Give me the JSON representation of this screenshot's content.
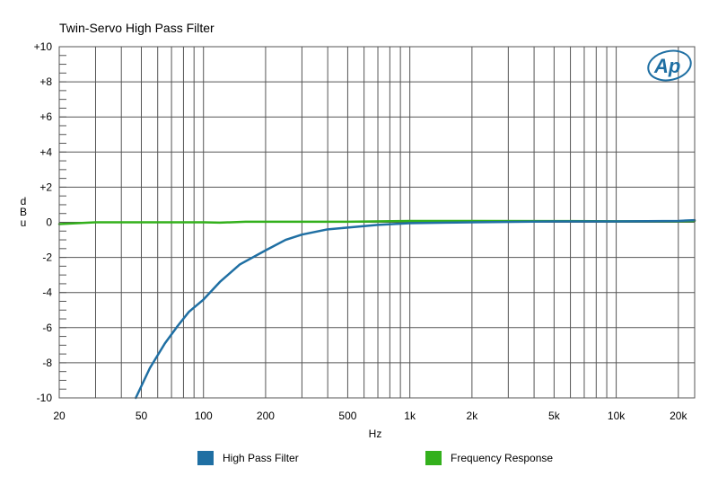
{
  "chart_data": {
    "type": "line",
    "title": "Twin-Servo High Pass Filter",
    "xlabel": "Hz",
    "ylabel": "dBu",
    "xscale": "log",
    "xlim": [
      20,
      24000
    ],
    "ylim": [
      -10,
      10
    ],
    "x_ticks": [
      {
        "value": 20,
        "label": "20"
      },
      {
        "value": 50,
        "label": "50"
      },
      {
        "value": 100,
        "label": "100"
      },
      {
        "value": 200,
        "label": "200"
      },
      {
        "value": 500,
        "label": "500"
      },
      {
        "value": 1000,
        "label": "1k"
      },
      {
        "value": 2000,
        "label": "2k"
      },
      {
        "value": 5000,
        "label": "5k"
      },
      {
        "value": 10000,
        "label": "10k"
      },
      {
        "value": 20000,
        "label": "20k"
      }
    ],
    "y_ticks": [
      {
        "value": 10,
        "label": "+10"
      },
      {
        "value": 8,
        "label": "+8"
      },
      {
        "value": 6,
        "label": "+6"
      },
      {
        "value": 4,
        "label": "+4"
      },
      {
        "value": 2,
        "label": "+2"
      },
      {
        "value": 0,
        "label": "0"
      },
      {
        "value": -2,
        "label": "-2"
      },
      {
        "value": -4,
        "label": "-4"
      },
      {
        "value": -6,
        "label": "-6"
      },
      {
        "value": -8,
        "label": "-8"
      },
      {
        "value": -10,
        "label": "-10"
      }
    ],
    "grid": true,
    "legend_position": "bottom",
    "logo_text": "AP",
    "series": [
      {
        "name": "High Pass Filter",
        "color": "#1f6fa3",
        "x": [
          47,
          55,
          65,
          75,
          85,
          100,
          120,
          150,
          200,
          250,
          300,
          400,
          500,
          700,
          1000,
          1500,
          2000,
          5000,
          10000,
          20000,
          24000
        ],
        "y": [
          -10,
          -8.3,
          -6.9,
          -5.9,
          -5.1,
          -4.4,
          -3.4,
          -2.4,
          -1.6,
          -1.0,
          -0.7,
          -0.4,
          -0.3,
          -0.15,
          -0.05,
          -0.02,
          0.0,
          0.05,
          0.05,
          0.08,
          0.12
        ]
      },
      {
        "name": "Frequency Response",
        "color": "#33b01c",
        "x": [
          20,
          30,
          50,
          100,
          120,
          160,
          200,
          500,
          1000,
          2000,
          5000,
          10000,
          20000,
          24000
        ],
        "y": [
          -0.1,
          0.0,
          0.0,
          0.0,
          -0.02,
          0.03,
          0.03,
          0.03,
          0.08,
          0.08,
          0.07,
          0.06,
          0.06,
          0.08
        ]
      }
    ]
  }
}
